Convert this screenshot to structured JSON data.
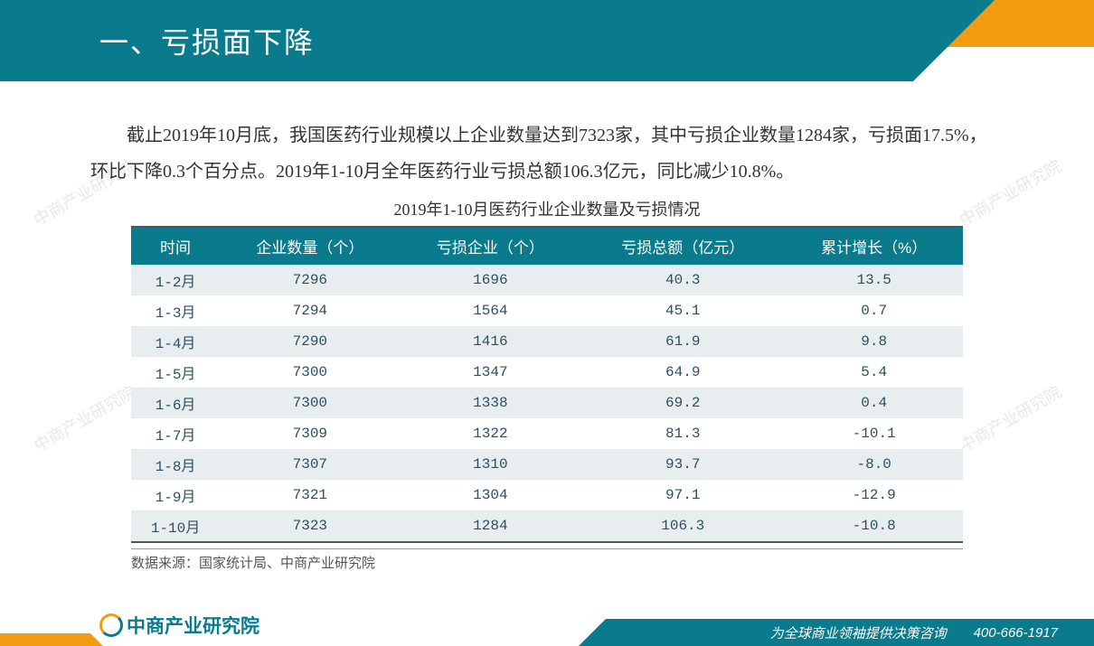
{
  "header": {
    "title": "一、亏损面下降"
  },
  "body": {
    "paragraph": "截止2019年10月底，我国医药行业规模以上企业数量达到7323家，其中亏损企业数量1284家，亏损面17.5%，环比下降0.3个百分点。2019年1-10月全年医药行业亏损总额106.3亿元，同比减少10.8%。"
  },
  "table": {
    "title": "2019年1-10月医药行业企业数量及亏损情况",
    "columns": [
      "时间",
      "企业数量（个）",
      "亏损企业（个）",
      "亏损总额（亿元）",
      "累计增长（%）"
    ],
    "rows": [
      [
        "1-2月",
        "7296",
        "1696",
        "40.3",
        "13.5"
      ],
      [
        "1-3月",
        "7294",
        "1564",
        "45.1",
        "0.7"
      ],
      [
        "1-4月",
        "7290",
        "1416",
        "61.9",
        "9.8"
      ],
      [
        "1-5月",
        "7300",
        "1347",
        "64.9",
        "5.4"
      ],
      [
        "1-6月",
        "7300",
        "1338",
        "69.2",
        "0.4"
      ],
      [
        "1-7月",
        "7309",
        "1322",
        "81.3",
        "-10.1"
      ],
      [
        "1-8月",
        "7307",
        "1310",
        "93.7",
        "-8.0"
      ],
      [
        "1-9月",
        "7321",
        "1304",
        "97.1",
        "-12.9"
      ],
      [
        "1-10月",
        "7323",
        "1284",
        "106.3",
        "-10.8"
      ]
    ],
    "header_bg": "#0a7b8c",
    "header_color": "#ffffff",
    "row_odd_bg": "#e8eef0",
    "row_even_bg": "#ffffff",
    "cell_color": "#2f4f5f"
  },
  "source": {
    "text": "数据来源：国家统计局、中商产业研究院"
  },
  "footer": {
    "logo_text": "中商产业研究院",
    "tagline": "为全球商业领袖提供决策咨询",
    "phone": "400-666-1917"
  },
  "watermark": {
    "text": "中商产业研究院"
  },
  "colors": {
    "teal": "#0a7b8c",
    "orange": "#f39c12",
    "text_dark": "#333333"
  }
}
